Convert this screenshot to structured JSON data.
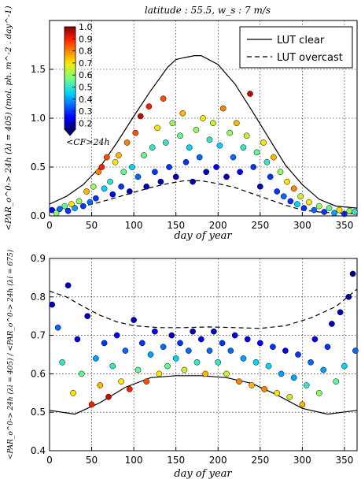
{
  "chart_data": [
    {
      "type": "scatter",
      "title": "latitude : 55.5, w_s : 7 m/s",
      "xlabel": "day of year",
      "ylabel": "<PAR_o^0-> 24h (λi = 405) (mol. ph. m^-2 . day^-1)",
      "xlim": [
        0,
        365
      ],
      "ylim": [
        0,
        2.0
      ],
      "xticks": [
        0,
        50,
        100,
        150,
        200,
        250,
        300,
        350
      ],
      "yticks": [
        0.0,
        0.5,
        1.0,
        1.5
      ],
      "grid": true,
      "legend": {
        "placement": "top-right",
        "entries": [
          "LUT clear",
          "LUT overcast"
        ]
      },
      "colorbar": {
        "label": "<CF>24h",
        "ticks": [
          1.0,
          0.9,
          0.8,
          0.7,
          0.6,
          0.5,
          0.4,
          0.3,
          0.2
        ],
        "colormap": "jet",
        "range": [
          0.15,
          1.0
        ]
      },
      "series": [
        {
          "name": "LUT clear",
          "style": "solid",
          "x": [
            0,
            20,
            40,
            60,
            80,
            100,
            120,
            140,
            150,
            160,
            172,
            180,
            200,
            220,
            240,
            260,
            280,
            300,
            320,
            340,
            365
          ],
          "y": [
            0.12,
            0.2,
            0.32,
            0.5,
            0.75,
            1.02,
            1.28,
            1.52,
            1.6,
            1.62,
            1.64,
            1.64,
            1.55,
            1.35,
            1.08,
            0.8,
            0.52,
            0.32,
            0.17,
            0.1,
            0.08
          ]
        },
        {
          "name": "LUT overcast",
          "style": "dashed",
          "x": [
            0,
            20,
            40,
            60,
            80,
            100,
            120,
            140,
            160,
            180,
            200,
            220,
            240,
            260,
            280,
            300,
            320,
            340,
            365
          ],
          "y": [
            0.04,
            0.07,
            0.1,
            0.14,
            0.19,
            0.24,
            0.29,
            0.33,
            0.36,
            0.36,
            0.33,
            0.29,
            0.23,
            0.17,
            0.11,
            0.06,
            0.04,
            0.03,
            0.02
          ]
        }
      ],
      "points": [
        {
          "x": 3,
          "y": 0.06,
          "cf": 0.25
        },
        {
          "x": 8,
          "y": 0.03,
          "cf": 0.6
        },
        {
          "x": 12,
          "y": 0.07,
          "cf": 0.35
        },
        {
          "x": 18,
          "y": 0.1,
          "cf": 0.55
        },
        {
          "x": 22,
          "y": 0.05,
          "cf": 0.3
        },
        {
          "x": 26,
          "y": 0.12,
          "cf": 0.7
        },
        {
          "x": 30,
          "y": 0.08,
          "cf": 0.4
        },
        {
          "x": 35,
          "y": 0.15,
          "cf": 0.6
        },
        {
          "x": 40,
          "y": 0.1,
          "cf": 0.3
        },
        {
          "x": 44,
          "y": 0.25,
          "cf": 0.75
        },
        {
          "x": 48,
          "y": 0.14,
          "cf": 0.35
        },
        {
          "x": 52,
          "y": 0.3,
          "cf": 0.6
        },
        {
          "x": 55,
          "y": 0.18,
          "cf": 0.3
        },
        {
          "x": 58,
          "y": 0.45,
          "cf": 0.8
        },
        {
          "x": 62,
          "y": 0.5,
          "cf": 0.9
        },
        {
          "x": 65,
          "y": 0.28,
          "cf": 0.45
        },
        {
          "x": 68,
          "y": 0.6,
          "cf": 0.85
        },
        {
          "x": 72,
          "y": 0.35,
          "cf": 0.5
        },
        {
          "x": 75,
          "y": 0.22,
          "cf": 0.25
        },
        {
          "x": 78,
          "y": 0.55,
          "cf": 0.7
        },
        {
          "x": 82,
          "y": 0.62,
          "cf": 0.75
        },
        {
          "x": 85,
          "y": 0.3,
          "cf": 0.3
        },
        {
          "x": 88,
          "y": 0.45,
          "cf": 0.55
        },
        {
          "x": 92,
          "y": 0.75,
          "cf": 0.8
        },
        {
          "x": 95,
          "y": 0.25,
          "cf": 0.2
        },
        {
          "x": 98,
          "y": 0.5,
          "cf": 0.45
        },
        {
          "x": 102,
          "y": 0.85,
          "cf": 0.85
        },
        {
          "x": 105,
          "y": 0.4,
          "cf": 0.35
        },
        {
          "x": 108,
          "y": 1.02,
          "cf": 0.95
        },
        {
          "x": 112,
          "y": 0.62,
          "cf": 0.55
        },
        {
          "x": 115,
          "y": 0.3,
          "cf": 0.2
        },
        {
          "x": 118,
          "y": 1.12,
          "cf": 0.9
        },
        {
          "x": 122,
          "y": 0.7,
          "cf": 0.5
        },
        {
          "x": 125,
          "y": 0.45,
          "cf": 0.3
        },
        {
          "x": 128,
          "y": 0.9,
          "cf": 0.7
        },
        {
          "x": 132,
          "y": 0.35,
          "cf": 0.2
        },
        {
          "x": 135,
          "y": 1.2,
          "cf": 0.85
        },
        {
          "x": 138,
          "y": 0.75,
          "cf": 0.5
        },
        {
          "x": 142,
          "y": 0.5,
          "cf": 0.3
        },
        {
          "x": 146,
          "y": 0.95,
          "cf": 0.6
        },
        {
          "x": 150,
          "y": 0.4,
          "cf": 0.2
        },
        {
          "x": 155,
          "y": 0.82,
          "cf": 0.55
        },
        {
          "x": 158,
          "y": 1.05,
          "cf": 0.75
        },
        {
          "x": 162,
          "y": 0.55,
          "cf": 0.3
        },
        {
          "x": 166,
          "y": 0.7,
          "cf": 0.45
        },
        {
          "x": 170,
          "y": 0.35,
          "cf": 0.18
        },
        {
          "x": 174,
          "y": 0.88,
          "cf": 0.6
        },
        {
          "x": 178,
          "y": 0.6,
          "cf": 0.35
        },
        {
          "x": 182,
          "y": 1.0,
          "cf": 0.7
        },
        {
          "x": 186,
          "y": 0.45,
          "cf": 0.2
        },
        {
          "x": 190,
          "y": 0.78,
          "cf": 0.5
        },
        {
          "x": 194,
          "y": 0.95,
          "cf": 0.65
        },
        {
          "x": 198,
          "y": 0.5,
          "cf": 0.25
        },
        {
          "x": 202,
          "y": 0.72,
          "cf": 0.45
        },
        {
          "x": 206,
          "y": 1.1,
          "cf": 0.8
        },
        {
          "x": 210,
          "y": 0.4,
          "cf": 0.2
        },
        {
          "x": 214,
          "y": 0.85,
          "cf": 0.6
        },
        {
          "x": 218,
          "y": 0.6,
          "cf": 0.35
        },
        {
          "x": 222,
          "y": 0.95,
          "cf": 0.75
        },
        {
          "x": 226,
          "y": 0.45,
          "cf": 0.25
        },
        {
          "x": 230,
          "y": 0.7,
          "cf": 0.5
        },
        {
          "x": 234,
          "y": 0.82,
          "cf": 0.65
        },
        {
          "x": 238,
          "y": 1.25,
          "cf": 0.95
        },
        {
          "x": 242,
          "y": 0.5,
          "cf": 0.3
        },
        {
          "x": 246,
          "y": 0.65,
          "cf": 0.55
        },
        {
          "x": 250,
          "y": 0.3,
          "cf": 0.2
        },
        {
          "x": 254,
          "y": 0.75,
          "cf": 0.7
        },
        {
          "x": 258,
          "y": 0.55,
          "cf": 0.5
        },
        {
          "x": 262,
          "y": 0.4,
          "cf": 0.3
        },
        {
          "x": 266,
          "y": 0.6,
          "cf": 0.75
        },
        {
          "x": 270,
          "y": 0.25,
          "cf": 0.3
        },
        {
          "x": 274,
          "y": 0.45,
          "cf": 0.6
        },
        {
          "x": 278,
          "y": 0.2,
          "cf": 0.35
        },
        {
          "x": 282,
          "y": 0.35,
          "cf": 0.7
        },
        {
          "x": 286,
          "y": 0.15,
          "cf": 0.3
        },
        {
          "x": 290,
          "y": 0.28,
          "cf": 0.8
        },
        {
          "x": 294,
          "y": 0.12,
          "cf": 0.45
        },
        {
          "x": 298,
          "y": 0.2,
          "cf": 0.65
        },
        {
          "x": 302,
          "y": 0.08,
          "cf": 0.3
        },
        {
          "x": 308,
          "y": 0.14,
          "cf": 0.7
        },
        {
          "x": 314,
          "y": 0.06,
          "cf": 0.35
        },
        {
          "x": 320,
          "y": 0.1,
          "cf": 0.6
        },
        {
          "x": 326,
          "y": 0.04,
          "cf": 0.3
        },
        {
          "x": 332,
          "y": 0.08,
          "cf": 0.55
        },
        {
          "x": 338,
          "y": 0.03,
          "cf": 0.4
        },
        {
          "x": 344,
          "y": 0.06,
          "cf": 0.7
        },
        {
          "x": 350,
          "y": 0.02,
          "cf": 0.3
        },
        {
          "x": 356,
          "y": 0.05,
          "cf": 0.6
        },
        {
          "x": 362,
          "y": 0.04,
          "cf": 0.5
        }
      ]
    },
    {
      "type": "scatter",
      "xlabel": "day of year",
      "ylabel": "<PAR_o^0-> 24h (λi = 405) / <PAR_o^0-> 24h (λi = 675)",
      "xlim": [
        0,
        365
      ],
      "ylim": [
        0.4,
        0.9
      ],
      "xticks": [
        0,
        50,
        100,
        150,
        200,
        250,
        300,
        350
      ],
      "yticks": [
        0.4,
        0.5,
        0.6,
        0.7,
        0.8,
        0.9
      ],
      "grid": true,
      "series": [
        {
          "name": "LUT clear",
          "style": "solid",
          "x": [
            0,
            30,
            60,
            90,
            120,
            150,
            180,
            210,
            240,
            270,
            300,
            330,
            365
          ],
          "y": [
            0.505,
            0.495,
            0.525,
            0.565,
            0.59,
            0.595,
            0.595,
            0.59,
            0.575,
            0.545,
            0.51,
            0.495,
            0.505
          ]
        },
        {
          "name": "LUT overcast",
          "style": "dashed",
          "x": [
            0,
            20,
            40,
            60,
            80,
            100,
            130,
            160,
            190,
            220,
            250,
            280,
            310,
            340,
            365
          ],
          "y": [
            0.815,
            0.8,
            0.775,
            0.752,
            0.735,
            0.725,
            0.72,
            0.72,
            0.722,
            0.72,
            0.718,
            0.725,
            0.745,
            0.775,
            0.82
          ]
        }
      ],
      "points": [
        {
          "x": 3,
          "y": 0.78,
          "cf": 0.2
        },
        {
          "x": 10,
          "y": 0.72,
          "cf": 0.35
        },
        {
          "x": 15,
          "y": 0.63,
          "cf": 0.5
        },
        {
          "x": 22,
          "y": 0.83,
          "cf": 0.2
        },
        {
          "x": 28,
          "y": 0.55,
          "cf": 0.7
        },
        {
          "x": 33,
          "y": 0.69,
          "cf": 0.25
        },
        {
          "x": 38,
          "y": 0.6,
          "cf": 0.55
        },
        {
          "x": 45,
          "y": 0.75,
          "cf": 0.2
        },
        {
          "x": 50,
          "y": 0.52,
          "cf": 0.9
        },
        {
          "x": 55,
          "y": 0.64,
          "cf": 0.4
        },
        {
          "x": 60,
          "y": 0.57,
          "cf": 0.75
        },
        {
          "x": 65,
          "y": 0.68,
          "cf": 0.3
        },
        {
          "x": 70,
          "y": 0.54,
          "cf": 0.95
        },
        {
          "x": 75,
          "y": 0.62,
          "cf": 0.5
        },
        {
          "x": 80,
          "y": 0.7,
          "cf": 0.25
        },
        {
          "x": 85,
          "y": 0.58,
          "cf": 0.7
        },
        {
          "x": 90,
          "y": 0.66,
          "cf": 0.35
        },
        {
          "x": 95,
          "y": 0.56,
          "cf": 0.9
        },
        {
          "x": 100,
          "y": 0.74,
          "cf": 0.2
        },
        {
          "x": 105,
          "y": 0.61,
          "cf": 0.55
        },
        {
          "x": 110,
          "y": 0.68,
          "cf": 0.3
        },
        {
          "x": 115,
          "y": 0.58,
          "cf": 0.85
        },
        {
          "x": 120,
          "y": 0.65,
          "cf": 0.4
        },
        {
          "x": 125,
          "y": 0.71,
          "cf": 0.25
        },
        {
          "x": 130,
          "y": 0.6,
          "cf": 0.7
        },
        {
          "x": 135,
          "y": 0.67,
          "cf": 0.35
        },
        {
          "x": 140,
          "y": 0.62,
          "cf": 0.55
        },
        {
          "x": 145,
          "y": 0.7,
          "cf": 0.2
        },
        {
          "x": 150,
          "y": 0.64,
          "cf": 0.45
        },
        {
          "x": 155,
          "y": 0.68,
          "cf": 0.3
        },
        {
          "x": 160,
          "y": 0.61,
          "cf": 0.65
        },
        {
          "x": 165,
          "y": 0.66,
          "cf": 0.35
        },
        {
          "x": 170,
          "y": 0.71,
          "cf": 0.2
        },
        {
          "x": 175,
          "y": 0.63,
          "cf": 0.5
        },
        {
          "x": 180,
          "y": 0.69,
          "cf": 0.25
        },
        {
          "x": 185,
          "y": 0.6,
          "cf": 0.75
        },
        {
          "x": 190,
          "y": 0.66,
          "cf": 0.35
        },
        {
          "x": 195,
          "y": 0.71,
          "cf": 0.2
        },
        {
          "x": 200,
          "y": 0.63,
          "cf": 0.5
        },
        {
          "x": 205,
          "y": 0.68,
          "cf": 0.3
        },
        {
          "x": 210,
          "y": 0.6,
          "cf": 0.65
        },
        {
          "x": 215,
          "y": 0.66,
          "cf": 0.35
        },
        {
          "x": 220,
          "y": 0.7,
          "cf": 0.22
        },
        {
          "x": 225,
          "y": 0.58,
          "cf": 0.8
        },
        {
          "x": 230,
          "y": 0.64,
          "cf": 0.4
        },
        {
          "x": 235,
          "y": 0.69,
          "cf": 0.25
        },
        {
          "x": 240,
          "y": 0.57,
          "cf": 0.75
        },
        {
          "x": 245,
          "y": 0.63,
          "cf": 0.45
        },
        {
          "x": 250,
          "y": 0.68,
          "cf": 0.25
        },
        {
          "x": 255,
          "y": 0.56,
          "cf": 0.8
        },
        {
          "x": 260,
          "y": 0.62,
          "cf": 0.45
        },
        {
          "x": 265,
          "y": 0.67,
          "cf": 0.3
        },
        {
          "x": 270,
          "y": 0.55,
          "cf": 0.7
        },
        {
          "x": 275,
          "y": 0.6,
          "cf": 0.4
        },
        {
          "x": 280,
          "y": 0.66,
          "cf": 0.25
        },
        {
          "x": 285,
          "y": 0.54,
          "cf": 0.65
        },
        {
          "x": 290,
          "y": 0.59,
          "cf": 0.4
        },
        {
          "x": 295,
          "y": 0.65,
          "cf": 0.3
        },
        {
          "x": 300,
          "y": 0.52,
          "cf": 0.75
        },
        {
          "x": 305,
          "y": 0.57,
          "cf": 0.5
        },
        {
          "x": 310,
          "y": 0.63,
          "cf": 0.35
        },
        {
          "x": 315,
          "y": 0.69,
          "cf": 0.25
        },
        {
          "x": 320,
          "y": 0.55,
          "cf": 0.6
        },
        {
          "x": 325,
          "y": 0.61,
          "cf": 0.4
        },
        {
          "x": 330,
          "y": 0.67,
          "cf": 0.3
        },
        {
          "x": 335,
          "y": 0.73,
          "cf": 0.2
        },
        {
          "x": 340,
          "y": 0.58,
          "cf": 0.55
        },
        {
          "x": 345,
          "y": 0.76,
          "cf": 0.2
        },
        {
          "x": 350,
          "y": 0.62,
          "cf": 0.45
        },
        {
          "x": 355,
          "y": 0.8,
          "cf": 0.18
        },
        {
          "x": 360,
          "y": 0.86,
          "cf": 0.15
        },
        {
          "x": 363,
          "y": 0.66,
          "cf": 0.35
        }
      ]
    }
  ]
}
